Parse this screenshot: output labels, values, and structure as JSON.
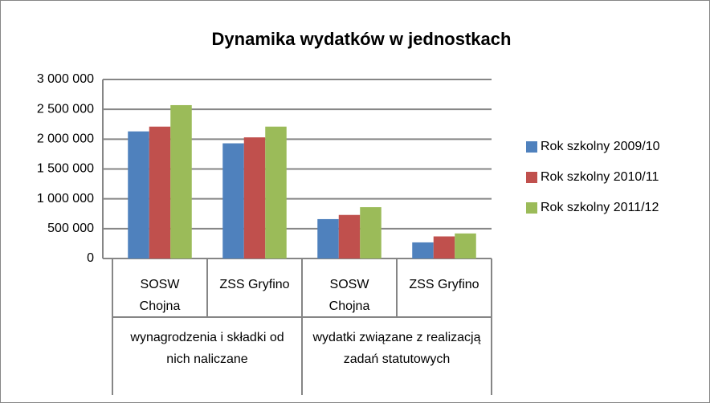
{
  "chart_data": {
    "type": "bar",
    "title": "Dynamika wydatków w jednostkach",
    "categories": [
      "SOSW Chojna",
      "ZSS Gryfino",
      "SOSW Chojna",
      "ZSS Gryfino"
    ],
    "groups": [
      "wynagrodzenia i składki od nich naliczane",
      "wydatki związane z realizacją zadań statutowych"
    ],
    "series": [
      {
        "name": "Rok szkolny 2009/10",
        "color": "#4f81bd",
        "values": [
          2130000,
          1930000,
          660000,
          270000
        ]
      },
      {
        "name": "Rok szkolny 2010/11",
        "color": "#c0504d",
        "values": [
          2210000,
          2030000,
          730000,
          370000
        ]
      },
      {
        "name": "Rok szkolny 2011/12",
        "color": "#9bbb59",
        "values": [
          2570000,
          2210000,
          860000,
          420000
        ]
      }
    ],
    "ylim": [
      0,
      3000000
    ],
    "yticks": [
      0,
      {
        "value": 500000,
        "label": "500 000"
      },
      {
        "value": 1000000,
        "label": "1 000 000"
      },
      {
        "value": 1500000,
        "label": "1 500 000"
      },
      {
        "value": 2000000,
        "label": "2 000 000"
      },
      {
        "value": 2500000,
        "label": "2 500 000"
      },
      {
        "value": 3000000,
        "label": "3 000 000"
      }
    ],
    "grid": true,
    "legend": "right"
  }
}
